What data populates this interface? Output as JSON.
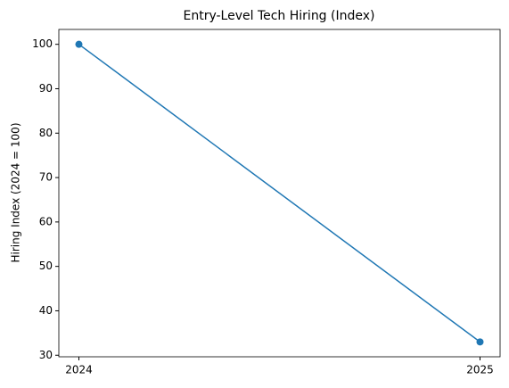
{
  "chart_data": {
    "type": "line",
    "title": "Entry-Level Tech Hiring (Index)",
    "y_label": "Hiring Index (2024 = 100)",
    "x": [
      2024,
      2025
    ],
    "values": [
      100,
      33
    ],
    "color": "#1f77b4",
    "marker": "circle",
    "xlim": [
      2023.95,
      2025.05
    ],
    "xticks": [
      2024,
      2025
    ],
    "ylim": [
      29.65,
      103.35
    ],
    "yticks": [
      30,
      40,
      50,
      60,
      70,
      80,
      90,
      100
    ],
    "grid": false
  }
}
